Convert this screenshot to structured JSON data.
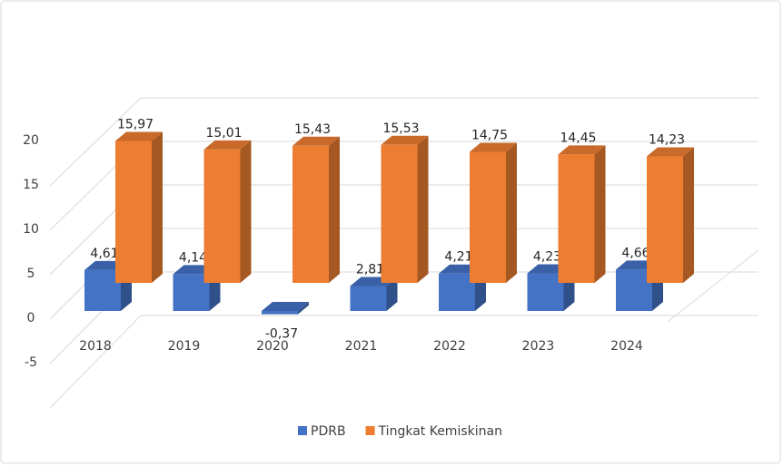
{
  "chart_data": {
    "type": "bar3d",
    "categories": [
      "2018",
      "2019",
      "2020",
      "2021",
      "2022",
      "2023",
      "2024"
    ],
    "series": [
      {
        "name": "PDRB",
        "color": "#4472c4",
        "values": [
          4.61,
          4.14,
          -0.37,
          2.81,
          4.21,
          4.23,
          4.66
        ],
        "value_labels": [
          "4,61",
          "4,14",
          "-0,37",
          "2,81",
          "4,21",
          "4,23",
          "4,66"
        ]
      },
      {
        "name": "Tingkat Kemiskinan",
        "color": "#ed7d31",
        "values": [
          15.97,
          15.01,
          15.43,
          15.53,
          14.75,
          14.45,
          14.23
        ],
        "value_labels": [
          "15,97",
          "15,01",
          "15,43",
          "15,53",
          "14,75",
          "14,45",
          "14,23"
        ]
      }
    ],
    "ylim": [
      -5,
      20
    ],
    "yticks": [
      -5,
      0,
      5,
      10,
      15,
      20
    ],
    "grid": true,
    "legend": "bottom"
  }
}
